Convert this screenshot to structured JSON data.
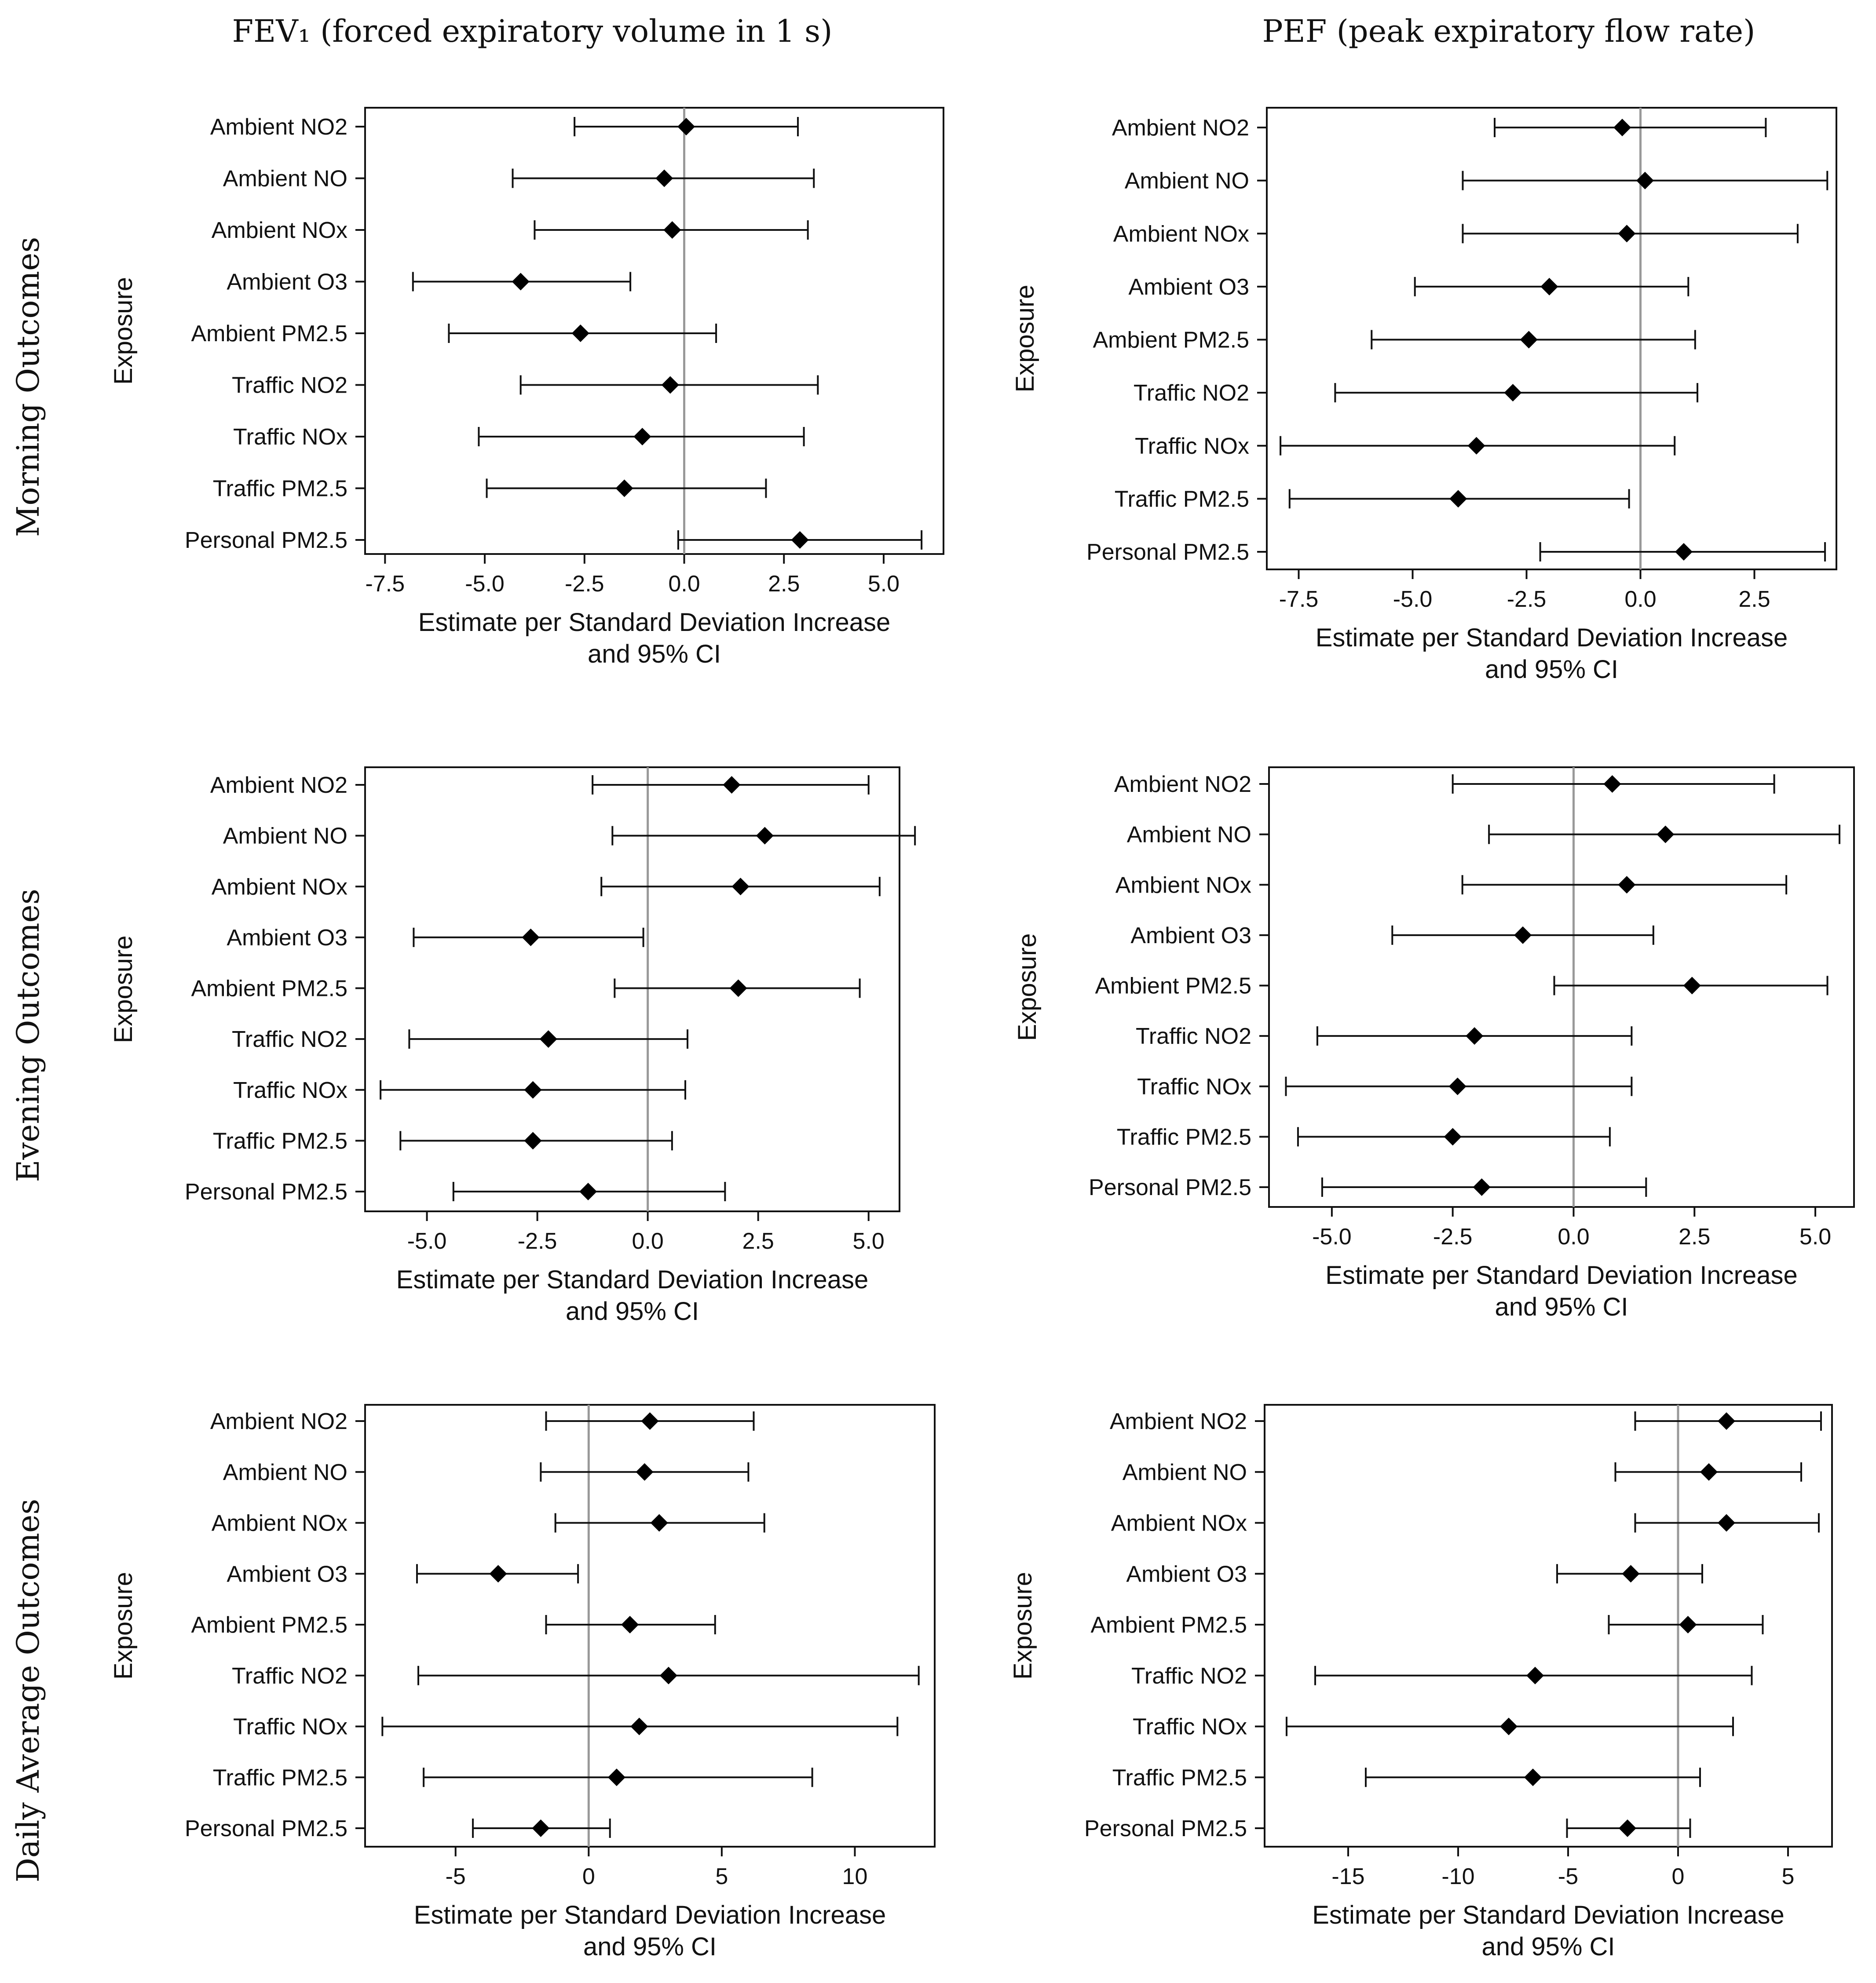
{
  "column_titles": [
    "FEV₁ (forced expiratory volume in 1 s)",
    "PEF (peak expiratory flow rate)"
  ],
  "row_titles": [
    "Morning Outcomes",
    "Evening Outcomes",
    "Daily Average Outcomes"
  ],
  "chart_data": [
    {
      "type": "forest",
      "outcome": "FEV1",
      "period": "Morning",
      "ylabel": "Exposure",
      "xlabel": [
        "Estimate per Standard Deviation Increase",
        "and 95% CI"
      ],
      "xlim": [
        -8,
        6.5
      ],
      "xticks": [
        -7.5,
        -5.0,
        -2.5,
        0.0,
        2.5,
        5.0
      ],
      "tick_decimals": 1,
      "reference_line": 0,
      "categories": [
        "Ambient NO2",
        "Ambient NO",
        "Ambient NOx",
        "Ambient O3",
        "Ambient PM2.5",
        "Traffic NO2",
        "Traffic NOx",
        "Traffic PM2.5",
        "Personal PM2.5"
      ],
      "estimates": [
        0.05,
        -0.5,
        -0.3,
        -4.1,
        -2.6,
        -0.35,
        -1.05,
        -1.5,
        2.9
      ],
      "lower": [
        -2.75,
        -4.3,
        -3.75,
        -6.8,
        -5.9,
        -4.1,
        -5.15,
        -4.95,
        -0.15
      ],
      "upper": [
        2.85,
        3.25,
        3.1,
        -1.35,
        0.8,
        3.35,
        3.0,
        2.05,
        5.95
      ]
    },
    {
      "type": "forest",
      "outcome": "PEF",
      "period": "Morning",
      "ylabel": "Exposure",
      "xlabel": [
        "Estimate per Standard Deviation Increase",
        "and 95% CI"
      ],
      "xlim": [
        -8.2,
        4.3
      ],
      "xticks": [
        -7.5,
        -5.0,
        -2.5,
        0.0,
        2.5
      ],
      "tick_decimals": 1,
      "reference_line": 0,
      "categories": [
        "Ambient NO2",
        "Ambient NO",
        "Ambient NOx",
        "Ambient O3",
        "Ambient PM2.5",
        "Traffic NO2",
        "Traffic NOx",
        "Traffic PM2.5",
        "Personal PM2.5"
      ],
      "estimates": [
        -0.4,
        0.1,
        -0.3,
        -2.0,
        -2.45,
        -2.8,
        -3.6,
        -4.0,
        0.95
      ],
      "lower": [
        -3.2,
        -3.9,
        -3.9,
        -4.95,
        -5.9,
        -6.7,
        -7.9,
        -7.7,
        -2.2
      ],
      "upper": [
        2.75,
        4.1,
        3.45,
        1.05,
        1.2,
        1.25,
        0.75,
        -0.25,
        4.05
      ]
    },
    {
      "type": "forest",
      "outcome": "FEV1",
      "period": "Evening",
      "ylabel": "Exposure",
      "xlabel": [
        "Estimate per Standard Deviation Increase",
        "and 95% CI"
      ],
      "xlim": [
        -6.4,
        5.7
      ],
      "xticks": [
        -5.0,
        -2.5,
        0.0,
        2.5,
        5.0
      ],
      "tick_decimals": 1,
      "reference_line": 0,
      "categories": [
        "Ambient NO2",
        "Ambient NO",
        "Ambient NOx",
        "Ambient O3",
        "Ambient PM2.5",
        "Traffic NO2",
        "Traffic NOx",
        "Traffic PM2.5",
        "Personal PM2.5"
      ],
      "estimates": [
        1.9,
        2.65,
        2.1,
        -2.65,
        2.05,
        -2.25,
        -2.6,
        -2.6,
        -1.35
      ],
      "lower": [
        -1.25,
        -0.8,
        -1.05,
        -5.3,
        -0.75,
        -5.4,
        -6.05,
        -5.6,
        -4.4
      ],
      "upper": [
        5.0,
        6.05,
        5.25,
        -0.1,
        4.8,
        0.9,
        0.85,
        0.55,
        1.75
      ]
    },
    {
      "type": "forest",
      "outcome": "PEF",
      "period": "Evening",
      "ylabel": "Exposure",
      "xlabel": [
        "Estimate per Standard Deviation Increase",
        "and 95% CI"
      ],
      "xlim": [
        -6.3,
        5.8
      ],
      "xticks": [
        -5.0,
        -2.5,
        0.0,
        2.5,
        5.0
      ],
      "tick_decimals": 1,
      "reference_line": 0,
      "categories": [
        "Ambient NO2",
        "Ambient NO",
        "Ambient NOx",
        "Ambient O3",
        "Ambient PM2.5",
        "Traffic NO2",
        "Traffic NOx",
        "Traffic PM2.5",
        "Personal PM2.5"
      ],
      "estimates": [
        0.8,
        1.9,
        1.1,
        -1.05,
        2.45,
        -2.05,
        -2.4,
        -2.5,
        -1.9
      ],
      "lower": [
        -2.5,
        -1.75,
        -2.3,
        -3.75,
        -0.4,
        -5.3,
        -5.95,
        -5.7,
        -5.2
      ],
      "upper": [
        4.15,
        5.5,
        4.4,
        1.65,
        5.25,
        1.2,
        1.2,
        0.75,
        1.5
      ]
    },
    {
      "type": "forest",
      "outcome": "FEV1",
      "period": "Daily Average",
      "ylabel": "Exposure",
      "xlabel": [
        "Estimate per Standard Deviation Increase",
        "and 95% CI"
      ],
      "xlim": [
        -8.4,
        13
      ],
      "xticks": [
        -5,
        0,
        5,
        10
      ],
      "tick_decimals": 0,
      "reference_line": 0,
      "categories": [
        "Ambient NO2",
        "Ambient NO",
        "Ambient NOx",
        "Ambient O3",
        "Ambient PM2.5",
        "Traffic NO2",
        "Traffic NOx",
        "Traffic PM2.5",
        "Personal PM2.5"
      ],
      "estimates": [
        2.3,
        2.1,
        2.65,
        -3.4,
        1.55,
        3.0,
        1.9,
        1.05,
        -1.8
      ],
      "lower": [
        -1.6,
        -1.8,
        -1.25,
        -6.45,
        -1.6,
        -6.4,
        -7.75,
        -6.2,
        -4.35
      ],
      "upper": [
        6.2,
        6.0,
        6.6,
        -0.4,
        4.75,
        12.4,
        11.6,
        8.4,
        0.8
      ]
    },
    {
      "type": "forest",
      "outcome": "PEF",
      "period": "Daily Average",
      "ylabel": "Exposure",
      "xlabel": [
        "Estimate per Standard Deviation Increase",
        "and 95% CI"
      ],
      "xlim": [
        -18.8,
        7.0
      ],
      "xticks": [
        -15,
        -10,
        -5,
        0,
        5
      ],
      "tick_decimals": 0,
      "reference_line": 0,
      "categories": [
        "Ambient NO2",
        "Ambient NO",
        "Ambient NOx",
        "Ambient O3",
        "Ambient PM2.5",
        "Traffic NO2",
        "Traffic NOx",
        "Traffic PM2.5",
        "Personal PM2.5"
      ],
      "estimates": [
        2.2,
        1.4,
        2.2,
        -2.15,
        0.45,
        -6.5,
        -7.7,
        -6.6,
        -2.3
      ],
      "lower": [
        -1.95,
        -2.85,
        -1.95,
        -5.5,
        -3.15,
        -16.5,
        -17.8,
        -14.2,
        -5.05
      ],
      "upper": [
        6.5,
        5.6,
        6.4,
        1.1,
        3.85,
        3.35,
        2.5,
        1.0,
        0.55
      ]
    }
  ]
}
